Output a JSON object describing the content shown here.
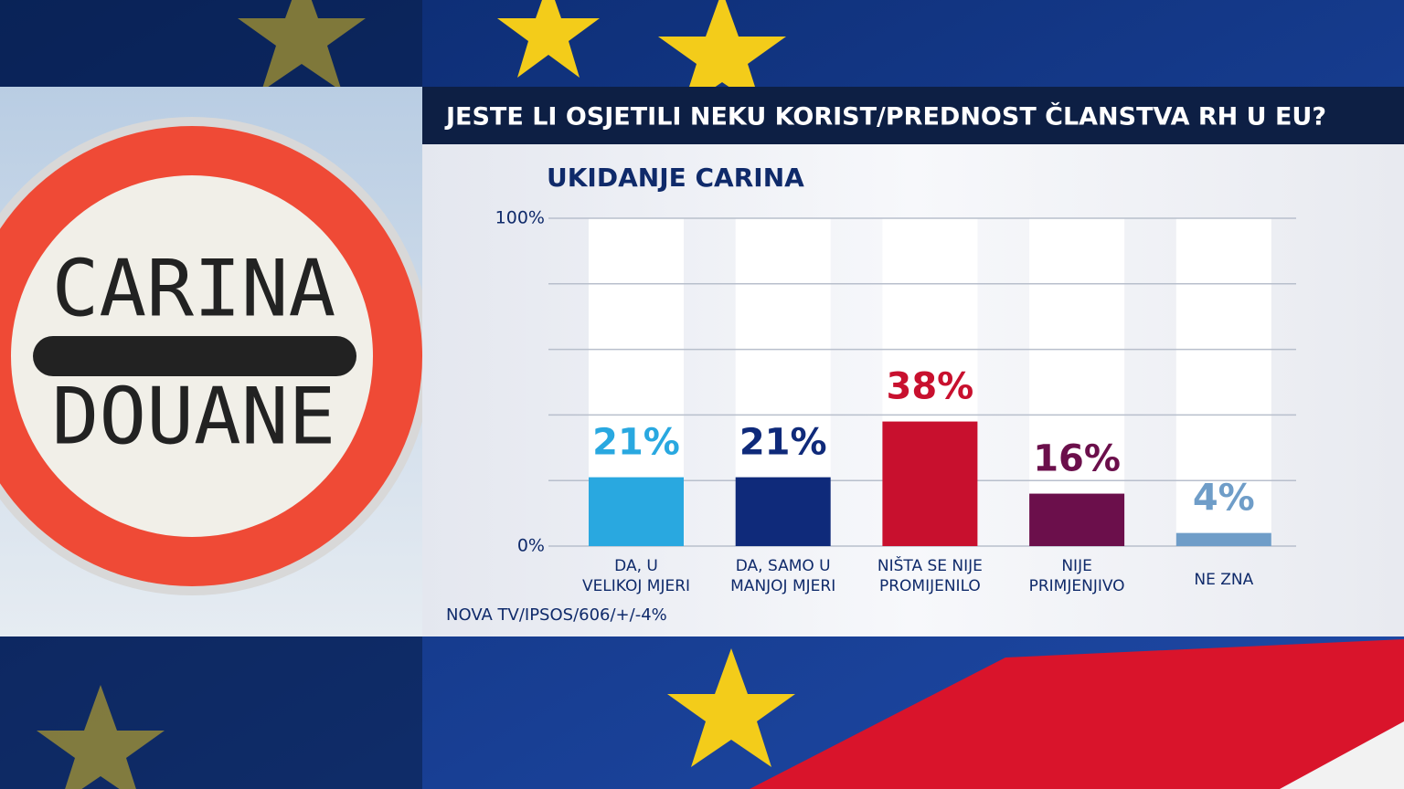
{
  "chart_data": {
    "type": "bar",
    "title": "JESTE LI OSJETILI NEKU KORIST/PREDNOST ČLANSTVA RH U EU?",
    "subtitle": "UKIDANJE CARINA",
    "categories": [
      "DA, U\nVELIKOJ MJERI",
      "DA, SAMO U\nMANJOJ MJERI",
      "NIŠTA SE NIJE\nPROMIJENILO",
      "NIJE\nPRIMJENJIVO",
      "NE ZNA"
    ],
    "values": [
      21,
      21,
      38,
      16,
      4
    ],
    "value_labels": [
      "21%",
      "21%",
      "38%",
      "16%",
      "4%"
    ],
    "colors": [
      "#29a8e0",
      "#0f2a7a",
      "#c8102e",
      "#6b0f4b",
      "#6f9dc8"
    ],
    "ylim": [
      0,
      100
    ],
    "yticks": [
      {
        "value": 0,
        "label": "0%"
      },
      {
        "value": 20,
        "label": null
      },
      {
        "value": 40,
        "label": null
      },
      {
        "value": 60,
        "label": null
      },
      {
        "value": 80,
        "label": null
      },
      {
        "value": 100,
        "label": "100%"
      }
    ],
    "grid": true,
    "source": "NOVA TV/IPSOS/606/+/-4%"
  },
  "image": {
    "text": [
      "CARINA",
      "DOUANE"
    ]
  }
}
